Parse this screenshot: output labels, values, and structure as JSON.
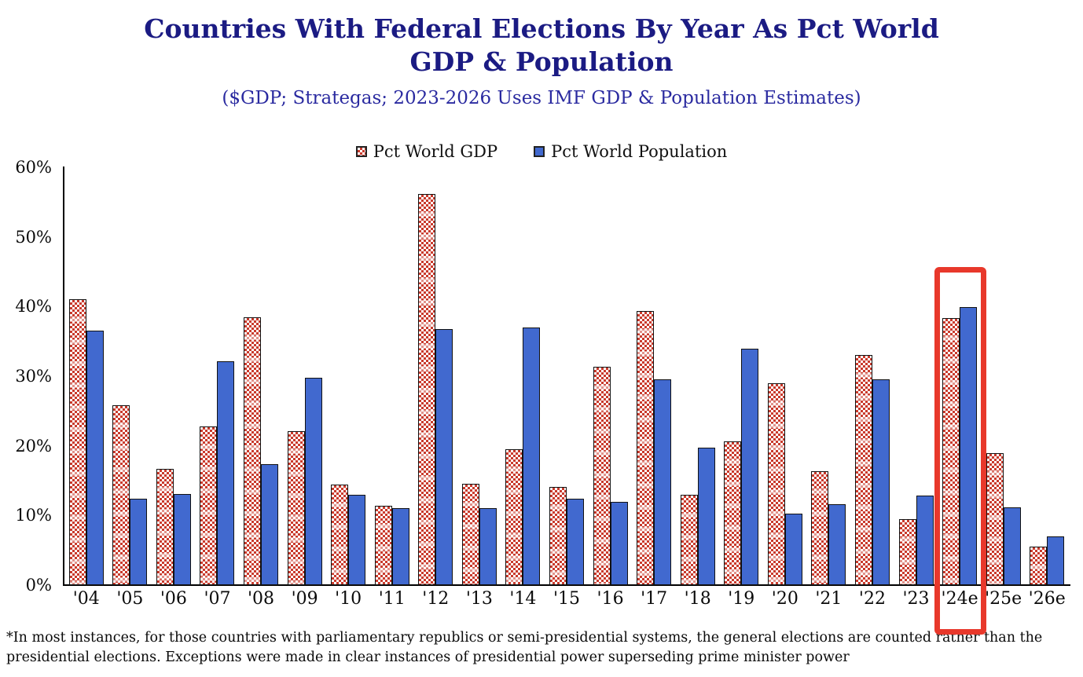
{
  "page": {
    "title_line1": "Countries With Federal Elections By Year As Pct World",
    "title_line2": "GDP & Population",
    "subtitle": "($GDP; Strategas; 2023-2026 Uses IMF GDP & Population Estimates)",
    "footnote": "*In most instances, for those countries with parliamentary republics or semi-presidential systems, the general elections are counted rather than the presidential elections. Exceptions were made in clear instances of presidential power superseding prime minister power"
  },
  "colors": {
    "title_navy": "#1b1b83",
    "subtitle_blue": "#2a2aa0",
    "gdp_checker_red": "#c93a2c",
    "population_blue": "#4169cf",
    "bar_border": "#111111",
    "highlight_red": "#e8382b",
    "axis_black": "#000000"
  },
  "chart_data": {
    "type": "bar",
    "title": "Countries With Federal Elections By Year As Pct World GDP & Population",
    "subtitle": "($GDP; Strategas; 2023-2026 Uses IMF GDP & Population Estimates)",
    "categories": [
      "'04",
      "'05",
      "'06",
      "'07",
      "'08",
      "'09",
      "'10",
      "'11",
      "'12",
      "'13",
      "'14",
      "'15",
      "'16",
      "'17",
      "'18",
      "'19",
      "'20",
      "'21",
      "'22",
      "'23",
      "'24e",
      "'25e",
      "'26e"
    ],
    "series": [
      {
        "name": "Pct World GDP",
        "style": "red-white-checker-pattern",
        "values": [
          41,
          25.8,
          16.7,
          22.8,
          38.5,
          22.1,
          14.4,
          11.4,
          56.2,
          14.6,
          19.5,
          14.1,
          31.3,
          39.4,
          13,
          20.6,
          29,
          16.4,
          33,
          9.5,
          38.3,
          19,
          5.5
        ]
      },
      {
        "name": "Pct World Population",
        "style": "solid-blue",
        "values": [
          36.5,
          12.4,
          13.1,
          32.2,
          17.4,
          29.8,
          13,
          11,
          36.8,
          11,
          37,
          12.4,
          12,
          29.5,
          19.7,
          34,
          10.3,
          11.6,
          29.5,
          12.9,
          39.9,
          11.2,
          7
        ]
      }
    ],
    "xlabel": "",
    "ylabel": "",
    "ylim": [
      0,
      60
    ],
    "yticks_pct": [
      0,
      10,
      20,
      30,
      40,
      50,
      60
    ],
    "grid": false,
    "legend_position": "top-center",
    "highlight": {
      "category": "'24e",
      "marker": "red-rectangle-outline"
    }
  }
}
